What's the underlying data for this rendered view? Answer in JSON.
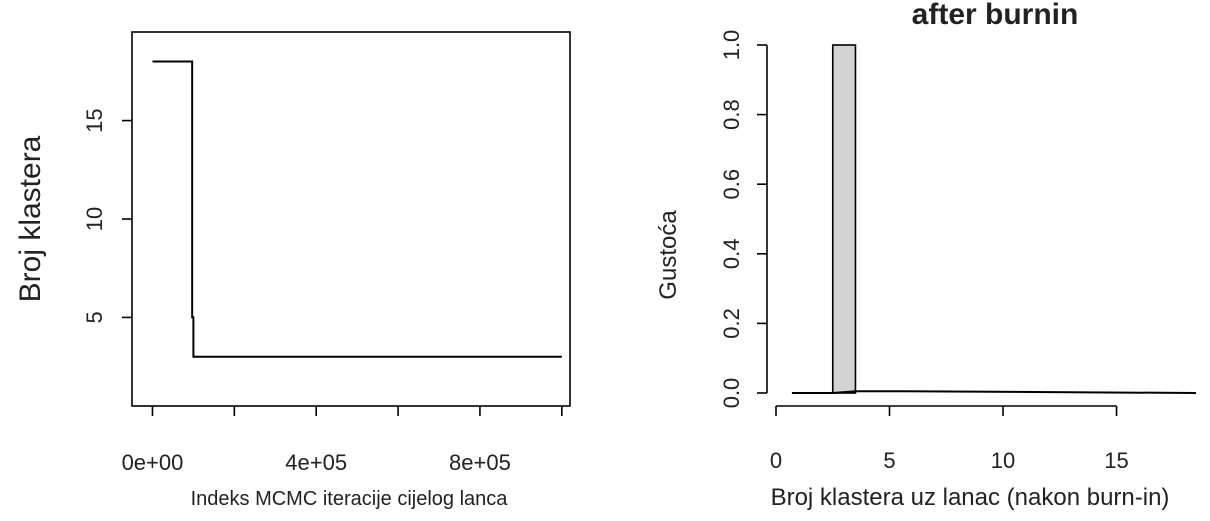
{
  "chart_data": [
    {
      "type": "line",
      "title": "",
      "xlabel": "Indeks MCMC iteracije cijelog lanca",
      "ylabel": "Broj klastera",
      "xlim": [
        -50000,
        1020000
      ],
      "ylim": [
        0.5,
        19.5
      ],
      "x_ticks": [
        0,
        200000,
        400000,
        600000,
        800000,
        1000000
      ],
      "x_tick_labels": [
        "0e+00",
        "",
        "4e+05",
        "",
        "8e+05",
        ""
      ],
      "y_ticks": [
        5,
        10,
        15
      ],
      "y_tick_labels": [
        "5",
        "10",
        "15"
      ],
      "box": true,
      "grid": false,
      "series": [
        {
          "x": [
            0,
            97000,
            97000,
            100000,
            100000,
            1000000
          ],
          "y": [
            18,
            18,
            5,
            5,
            3,
            3
          ]
        }
      ]
    },
    {
      "type": "bar",
      "title": "after burnin",
      "xlabel": "Broj klastera uz lanac (nakon burn-in)",
      "ylabel": "Gustoća",
      "xlim": [
        0,
        18.5
      ],
      "ylim": [
        0,
        1.0
      ],
      "x_ticks": [
        0,
        5,
        10,
        15
      ],
      "x_tick_labels": [
        "0",
        "5",
        "10",
        "15"
      ],
      "y_ticks": [
        0.0,
        0.2,
        0.4,
        0.6,
        0.8,
        1.0
      ],
      "y_tick_labels": [
        "0.0",
        "0.2",
        "0.4",
        "0.6",
        "0.8",
        "1.0"
      ],
      "box": false,
      "grid": false,
      "bar_color": "#d3d3d3",
      "bars": [
        {
          "x0": 2.5,
          "x1": 3.5,
          "density": 1.0
        }
      ],
      "density_line": {
        "x": [
          0.7,
          2.5,
          3.5,
          5.6,
          18.5
        ],
        "y": [
          0.0,
          0.0,
          0.005,
          0.005,
          0.0
        ]
      }
    }
  ]
}
